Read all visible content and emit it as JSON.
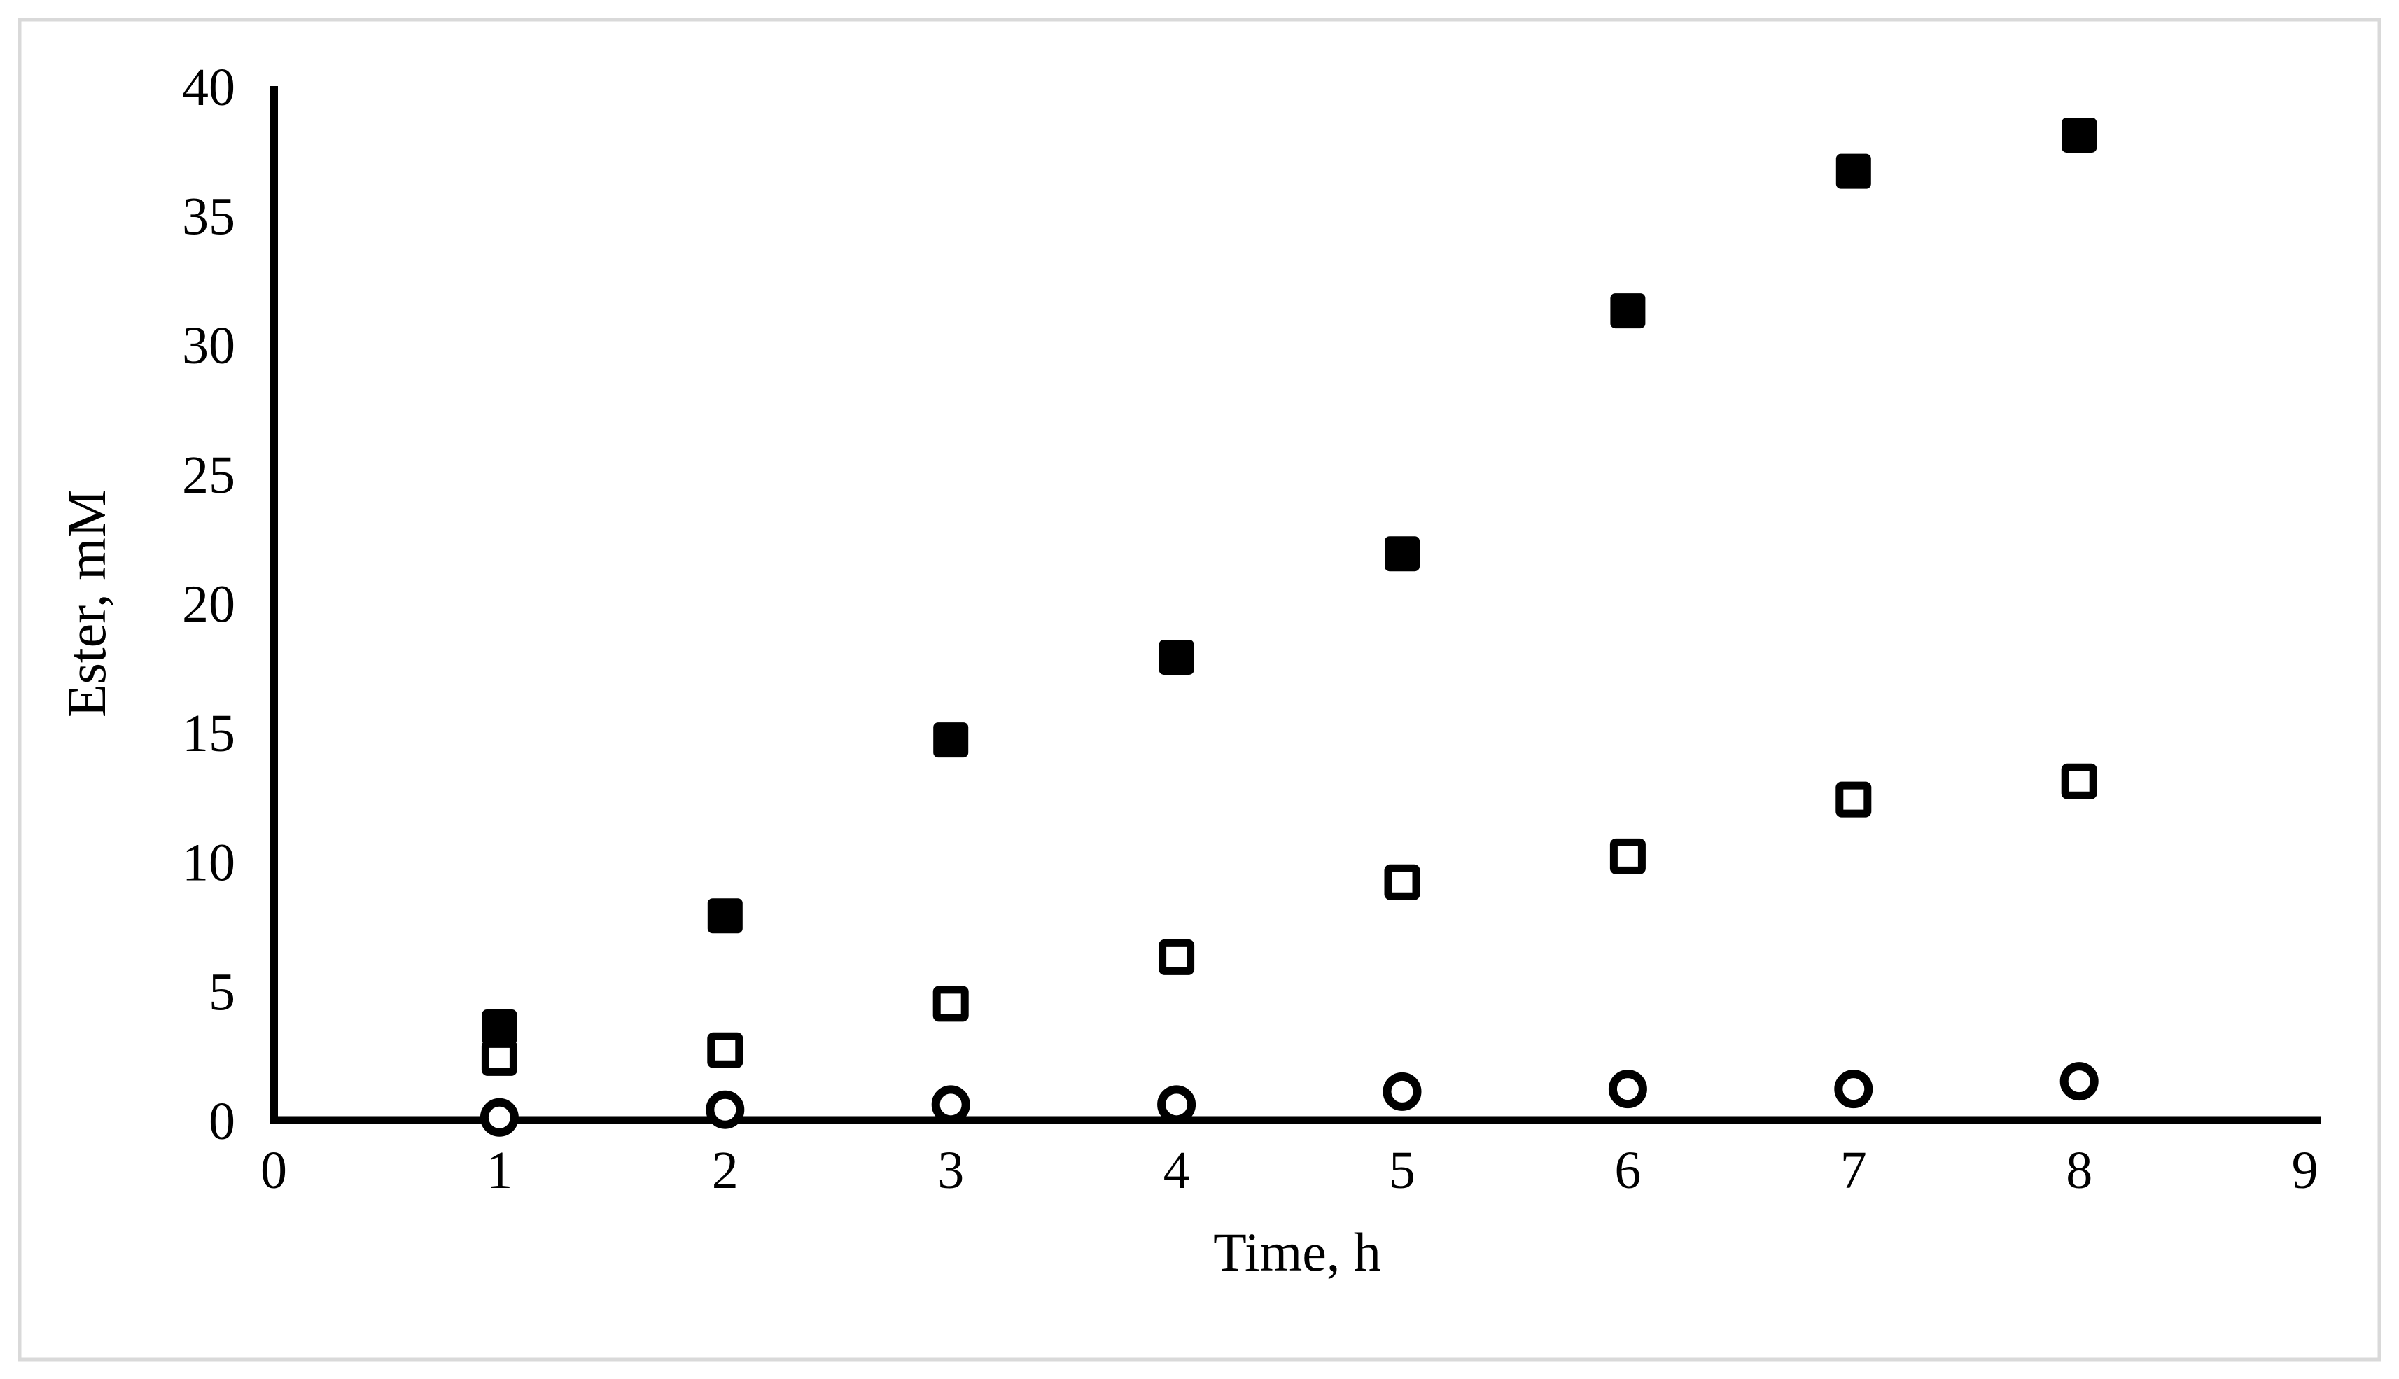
{
  "frame": {
    "border_color": "#d9d9d9",
    "background_color": "#ffffff"
  },
  "chart_data": {
    "type": "scatter",
    "title": "",
    "xlabel": "Time, h",
    "ylabel": "Ester, mM",
    "xlim": [
      0,
      9
    ],
    "ylim": [
      0,
      40
    ],
    "x_ticks": [
      0,
      1,
      2,
      3,
      4,
      5,
      6,
      7,
      8,
      9
    ],
    "y_ticks": [
      0,
      5,
      10,
      15,
      20,
      25,
      30,
      35,
      40
    ],
    "grid": false,
    "legend": false,
    "axis_color": "#000000",
    "marker_color": "#000000",
    "x": [
      1,
      2,
      3,
      4,
      5,
      6,
      7,
      8
    ],
    "series": [
      {
        "name": "filled-square-series",
        "marker": "filled-square",
        "values": [
          3.6,
          7.9,
          14.7,
          17.9,
          21.9,
          31.3,
          36.7,
          38.1
        ]
      },
      {
        "name": "open-square-series",
        "marker": "open-square",
        "values": [
          2.4,
          2.7,
          4.5,
          6.3,
          9.2,
          10.2,
          12.4,
          13.1
        ]
      },
      {
        "name": "open-circle-series",
        "marker": "open-circle",
        "values": [
          0.1,
          0.4,
          0.6,
          0.6,
          1.1,
          1.2,
          1.2,
          1.5
        ]
      }
    ]
  }
}
